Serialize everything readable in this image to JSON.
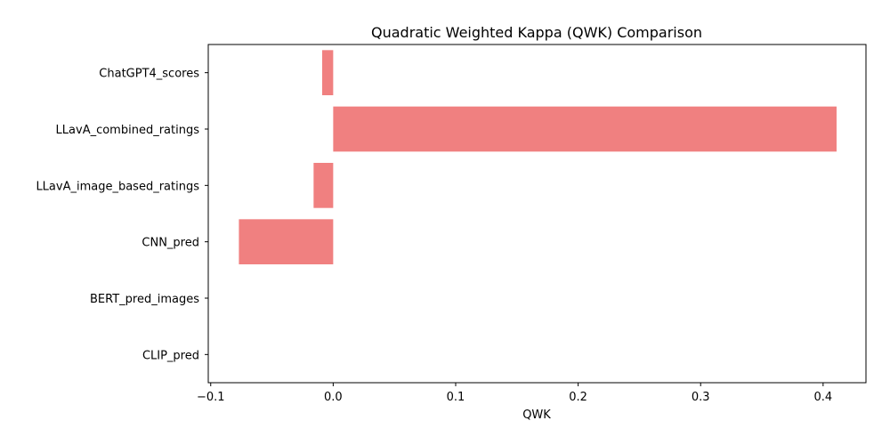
{
  "chart_data": {
    "type": "bar",
    "orientation": "horizontal",
    "title": "Quadratic Weighted Kappa (QWK) Comparison",
    "xlabel": "QWK",
    "ylabel": "",
    "categories": [
      "ChatGPT4_scores",
      "LLavA_combined_ratings",
      "LLavA_image_based_ratings",
      "CNN_pred",
      "BERT_pred_images",
      "CLIP_pred"
    ],
    "values": [
      -0.009,
      0.411,
      -0.016,
      -0.077,
      0.0,
      0.0
    ],
    "xlim": [
      -0.102,
      0.435
    ],
    "xticks": [
      -0.1,
      0.0,
      0.1,
      0.2,
      0.3,
      0.4
    ],
    "xtick_labels": [
      "−0.1",
      "0.0",
      "0.1",
      "0.2",
      "0.3",
      "0.4"
    ],
    "bar_color": "#f08080",
    "grid": false,
    "legend": "none"
  }
}
